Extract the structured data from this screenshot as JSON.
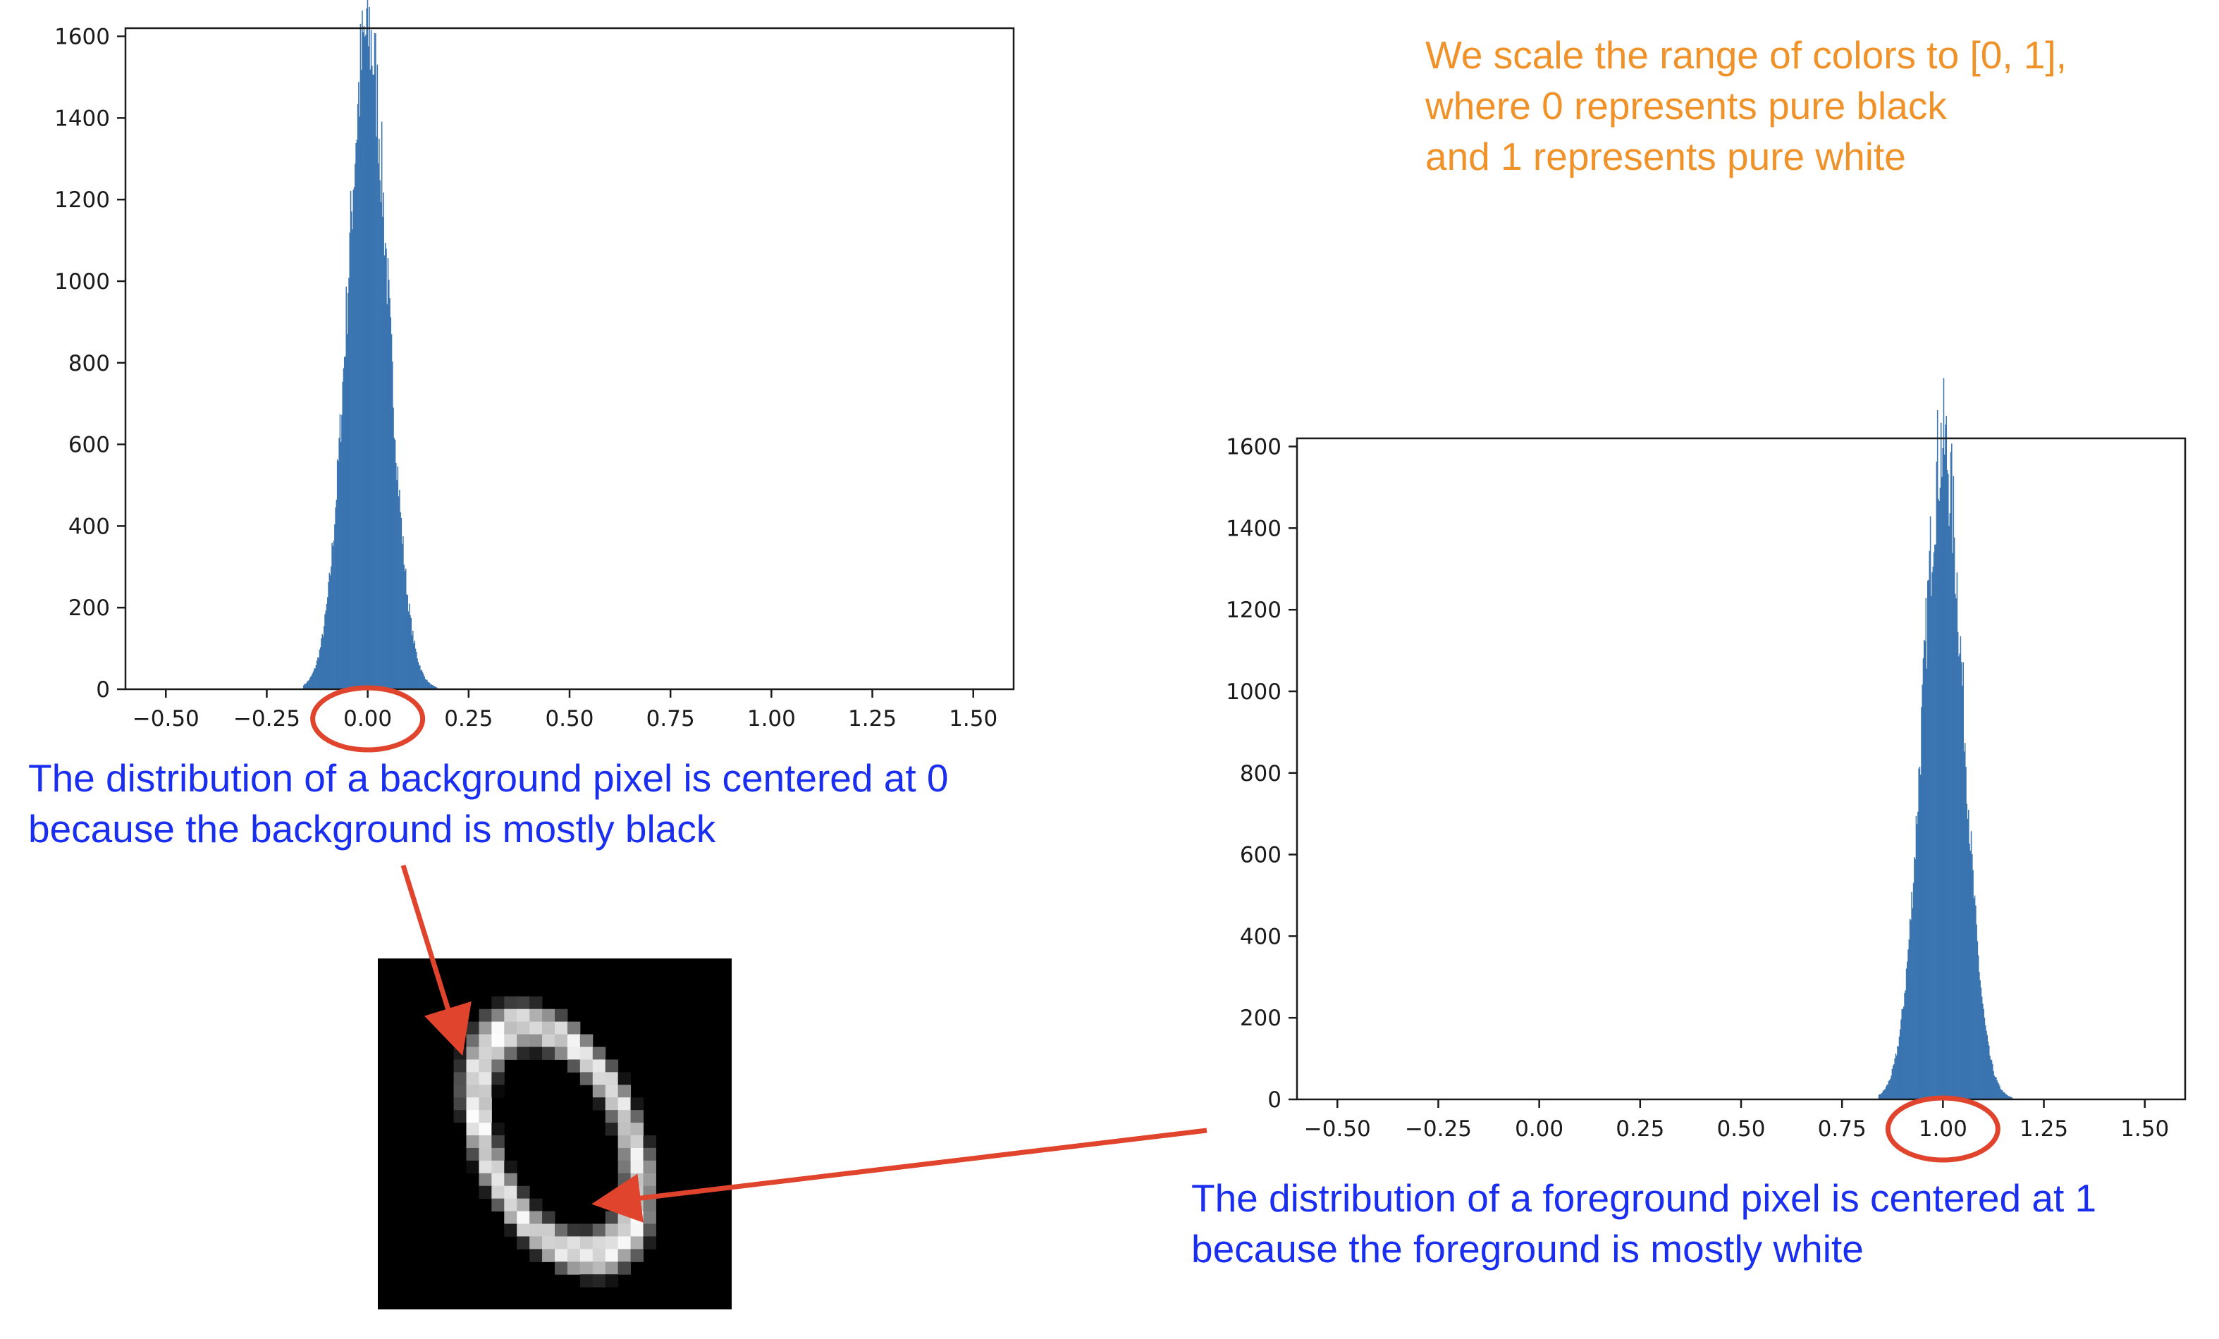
{
  "annotations": {
    "scale_note": [
      "We scale the range of colors to [0, 1],",
      "where 0 represents pure black",
      "and 1 represents pure white"
    ],
    "background_note": [
      "The distribution of a background pixel is centered at 0",
      "because the background is mostly black"
    ],
    "foreground_note": [
      "The distribution of a foreground pixel is centered at 1",
      "because the foreground is mostly white"
    ]
  },
  "colors": {
    "bars": "#3a74b0",
    "highlight": "#e0442c",
    "arrow": "#e0442c",
    "orange_text": "#f0922a",
    "blue_text": "#1a2ef0"
  },
  "chart_data": [
    {
      "type": "histogram",
      "title": "",
      "xlabel": "",
      "ylabel": "",
      "xlim": [
        -0.6,
        1.6
      ],
      "ylim": [
        0,
        1620
      ],
      "xticks": [
        -0.5,
        -0.25,
        0.0,
        0.25,
        0.5,
        0.75,
        1.0,
        1.25,
        1.5
      ],
      "xtick_labels": [
        "−0.50",
        "−0.25",
        "0.00",
        "0.25",
        "0.50",
        "0.75",
        "1.00",
        "1.25",
        "1.50"
      ],
      "yticks": [
        0,
        200,
        400,
        600,
        800,
        1000,
        1200,
        1400,
        1600
      ],
      "ytick_labels": [
        "0",
        "200",
        "400",
        "600",
        "800",
        "1000",
        "1200",
        "1400",
        "1600"
      ],
      "distribution": {
        "center": 0.0,
        "std": 0.05,
        "peak": 1610,
        "range": [
          -0.16,
          0.17
        ]
      },
      "highlighted_tick": "0.00"
    },
    {
      "type": "histogram",
      "title": "",
      "xlabel": "",
      "ylabel": "",
      "xlim": [
        -0.6,
        1.6
      ],
      "ylim": [
        0,
        1620
      ],
      "xticks": [
        -0.5,
        -0.25,
        0.0,
        0.25,
        0.5,
        0.75,
        1.0,
        1.25,
        1.5
      ],
      "xtick_labels": [
        "−0.50",
        "−0.25",
        "0.00",
        "0.25",
        "0.50",
        "0.75",
        "1.00",
        "1.25",
        "1.50"
      ],
      "yticks": [
        0,
        200,
        400,
        600,
        800,
        1000,
        1200,
        1400,
        1600
      ],
      "ytick_labels": [
        "0",
        "200",
        "400",
        "600",
        "800",
        "1000",
        "1200",
        "1400",
        "1600"
      ],
      "distribution": {
        "center": 1.0,
        "std": 0.05,
        "peak": 1610,
        "range": [
          0.84,
          1.17
        ]
      },
      "highlighted_tick": "1.00"
    }
  ],
  "digit_image": {
    "description_icon": "mnist-digit-zero-icon"
  }
}
